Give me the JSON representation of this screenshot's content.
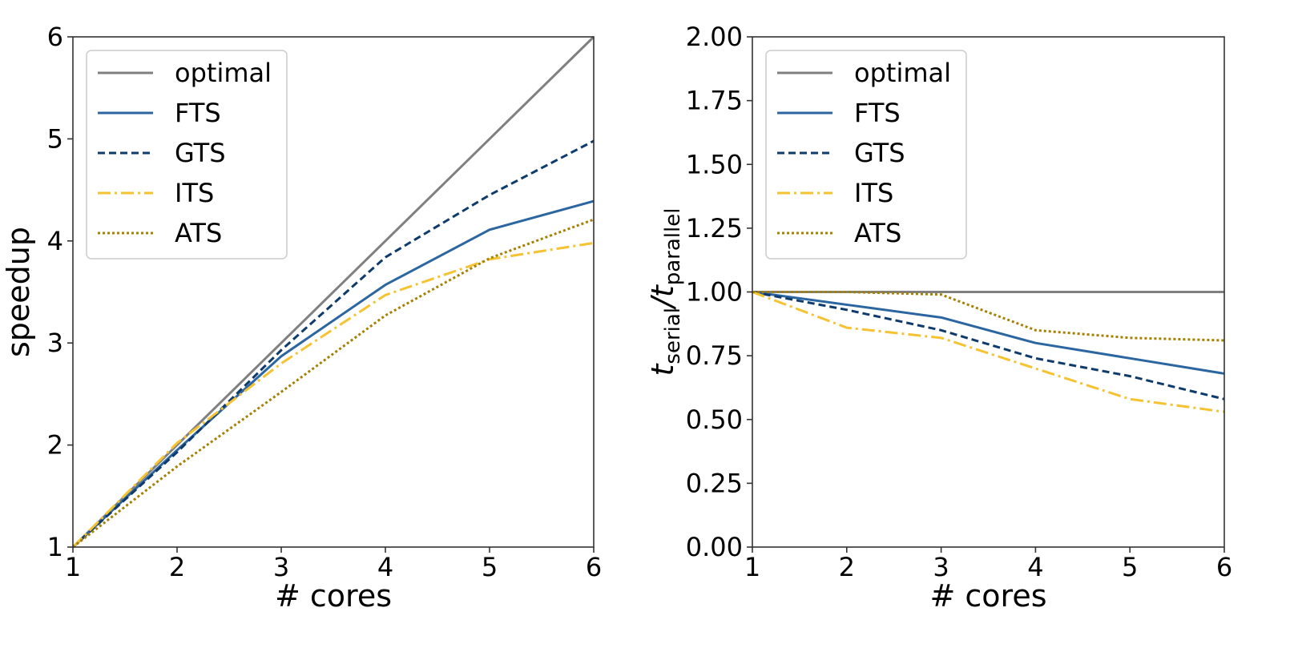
{
  "chart_data": [
    {
      "type": "line",
      "title": "",
      "xlabel": "# cores",
      "ylabel": "speedup",
      "x": [
        1,
        2,
        3,
        4,
        5,
        6
      ],
      "xlim": [
        1,
        6
      ],
      "ylim": [
        1,
        6
      ],
      "xticks": [
        "1",
        "2",
        "3",
        "4",
        "5",
        "6"
      ],
      "yticks": [
        "1",
        "2",
        "3",
        "4",
        "5",
        "6"
      ],
      "grid": false,
      "legend_position": "top-left",
      "series": [
        {
          "name": "optimal",
          "values": [
            1,
            2,
            3,
            4,
            5,
            6
          ],
          "color": "#808080",
          "style": "solid"
        },
        {
          "name": "FTS",
          "values": [
            1,
            1.95,
            2.87,
            3.57,
            4.11,
            4.39
          ],
          "color": "#2b66a0",
          "style": "solid"
        },
        {
          "name": "GTS",
          "values": [
            1,
            1.93,
            2.93,
            3.84,
            4.45,
            4.98
          ],
          "color": "#0e3b6c",
          "style": "dashed"
        },
        {
          "name": "ITS",
          "values": [
            1,
            2.02,
            2.8,
            3.47,
            3.82,
            3.98
          ],
          "color": "#f5c332",
          "style": "dashdot"
        },
        {
          "name": "ATS",
          "values": [
            1,
            1.79,
            2.52,
            3.27,
            3.83,
            4.21
          ],
          "color": "#a68000",
          "style": "dotted"
        }
      ]
    },
    {
      "type": "line",
      "title": "",
      "xlabel": "# cores",
      "ylabel_main": "t",
      "ylabel_sub1": "serial",
      "ylabel_sep": "/t",
      "ylabel_sub2": "parallel",
      "x": [
        1,
        2,
        3,
        4,
        5,
        6
      ],
      "xlim": [
        1,
        6
      ],
      "ylim": [
        0,
        2
      ],
      "xticks": [
        "1",
        "2",
        "3",
        "4",
        "5",
        "6"
      ],
      "yticks": [
        "0.00",
        "0.25",
        "0.50",
        "0.75",
        "1.00",
        "1.25",
        "1.50",
        "1.75",
        "2.00"
      ],
      "grid": false,
      "legend_position": "top-left",
      "series": [
        {
          "name": "optimal",
          "values": [
            1,
            1,
            1,
            1,
            1,
            1
          ],
          "color": "#808080",
          "style": "solid"
        },
        {
          "name": "FTS",
          "values": [
            1,
            0.95,
            0.9,
            0.8,
            0.74,
            0.68
          ],
          "color": "#2b66a0",
          "style": "solid"
        },
        {
          "name": "GTS",
          "values": [
            1,
            0.93,
            0.85,
            0.74,
            0.67,
            0.58
          ],
          "color": "#0e3b6c",
          "style": "dashed"
        },
        {
          "name": "ITS",
          "values": [
            1,
            0.86,
            0.82,
            0.7,
            0.58,
            0.53
          ],
          "color": "#f5c332",
          "style": "dashdot"
        },
        {
          "name": "ATS",
          "values": [
            1,
            1,
            0.99,
            0.85,
            0.82,
            0.81
          ],
          "color": "#a68000",
          "style": "dotted"
        }
      ]
    }
  ]
}
